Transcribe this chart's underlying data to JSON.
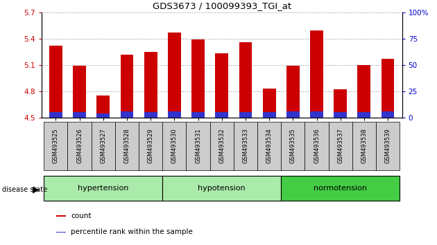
{
  "title": "GDS3673 / 100099393_TGI_at",
  "samples": [
    "GSM493525",
    "GSM493526",
    "GSM493527",
    "GSM493528",
    "GSM493529",
    "GSM493530",
    "GSM493531",
    "GSM493532",
    "GSM493533",
    "GSM493534",
    "GSM493535",
    "GSM493536",
    "GSM493537",
    "GSM493538",
    "GSM493539"
  ],
  "count_values": [
    5.32,
    5.09,
    4.75,
    5.22,
    5.25,
    5.47,
    5.39,
    5.23,
    5.36,
    4.83,
    5.09,
    5.49,
    4.82,
    5.1,
    5.17
  ],
  "percentile_values": [
    0.06,
    0.06,
    0.05,
    0.07,
    0.06,
    0.07,
    0.06,
    0.06,
    0.06,
    0.06,
    0.07,
    0.07,
    0.06,
    0.06,
    0.07
  ],
  "ylim_left": [
    4.5,
    5.7
  ],
  "ylim_right": [
    0,
    100
  ],
  "yticks_left": [
    4.5,
    4.8,
    5.1,
    5.4,
    5.7
  ],
  "yticks_right": [
    0,
    25,
    50,
    75,
    100
  ],
  "ytick_labels_right": [
    "0",
    "25",
    "50",
    "75",
    "100%"
  ],
  "bar_width": 0.55,
  "count_color": "#cc0000",
  "percentile_color": "#3333cc",
  "groups": [
    {
      "name": "hypertension",
      "indices": [
        0,
        1,
        2,
        3,
        4
      ]
    },
    {
      "name": "hypotension",
      "indices": [
        5,
        6,
        7,
        8,
        9
      ]
    },
    {
      "name": "normotension",
      "indices": [
        10,
        11,
        12,
        13,
        14
      ]
    }
  ],
  "group_light_color": "#aaeaaa",
  "group_dark_color": "#44cc44",
  "disease_state_label": "disease state",
  "legend_items": [
    {
      "label": "count",
      "color": "#cc0000"
    },
    {
      "label": "percentile rank within the sample",
      "color": "#3333cc"
    }
  ],
  "base_value": 4.5,
  "grid_color": "#888888",
  "tick_color_left": "#cc0000",
  "tick_color_right": "#0000cc",
  "xtick_box_color": "#cccccc"
}
